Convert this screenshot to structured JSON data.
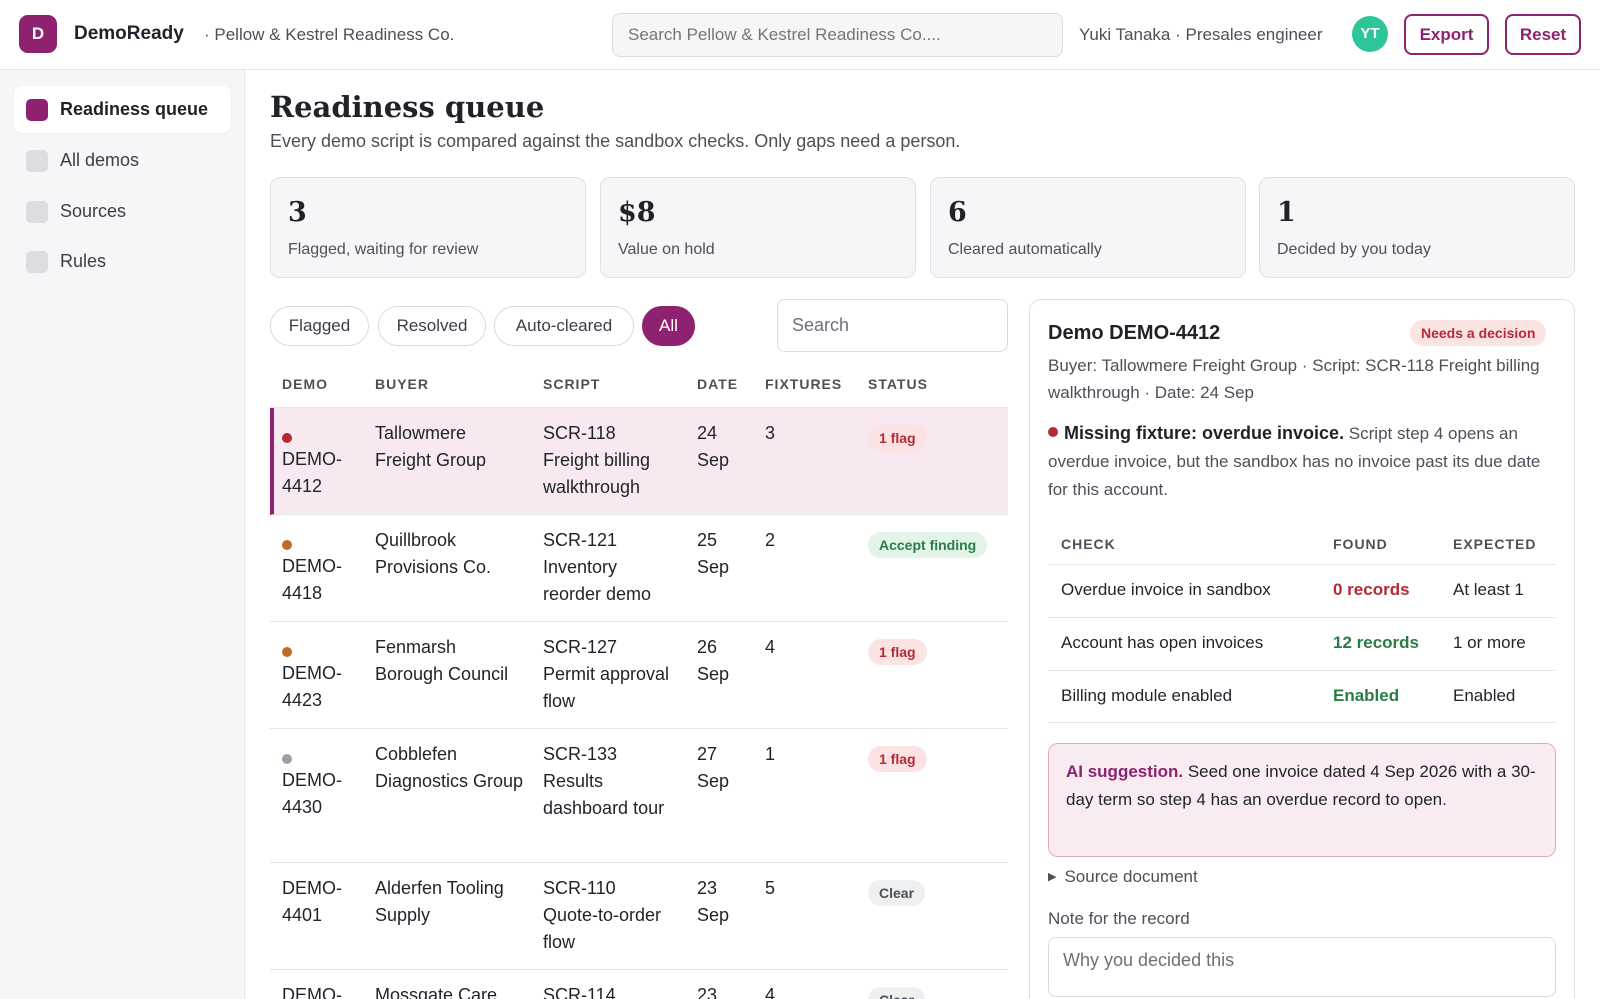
{
  "app": {
    "logo_letter": "D",
    "name": "DemoReady",
    "org": "· Pellow & Kestrel Readiness Co.",
    "search_placeholder": "Search Pellow & Kestrel Readiness Co....",
    "user": "Yuki Tanaka · Presales engineer",
    "avatar_initials": "YT",
    "export_label": "Export",
    "reset_label": "Reset",
    "accent_color": "#8e2270"
  },
  "sidebar": {
    "items": [
      {
        "label": "Readiness queue",
        "active": true
      },
      {
        "label": "All demos",
        "active": false
      },
      {
        "label": "Sources",
        "active": false
      },
      {
        "label": "Rules",
        "active": false
      }
    ]
  },
  "page": {
    "title": "Readiness queue",
    "subtitle": "Every demo script is compared against the sandbox checks. Only gaps need a person."
  },
  "stats": [
    {
      "value": "3",
      "label": "Flagged, waiting for review"
    },
    {
      "value": "$8",
      "label": "Value on hold"
    },
    {
      "value": "6",
      "label": "Cleared automatically"
    },
    {
      "value": "1",
      "label": "Decided by you today"
    }
  ],
  "filters": {
    "chips": [
      "Flagged",
      "Resolved",
      "Auto-cleared",
      "All"
    ],
    "active": "All",
    "search_placeholder": "Search"
  },
  "table": {
    "columns": [
      "DEMO",
      "BUYER",
      "SCRIPT",
      "DATE",
      "FIXTURES",
      "STATUS"
    ],
    "rows": [
      {
        "demo": "DEMO-4412",
        "buyer": "Tallowmere Freight Group",
        "script": "SCR-118 Freight billing walkthrough",
        "date": "24 Sep",
        "fixtures": "3",
        "status": "1 flag",
        "status_kind": "flag",
        "dot": "#b42b35",
        "selected": true
      },
      {
        "demo": "DEMO-4418",
        "buyer": "Quillbrook Provisions Co.",
        "script": "SCR-121 Inventory reorder demo",
        "date": "25 Sep",
        "fixtures": "2",
        "status": "Accept finding",
        "status_kind": "accept",
        "dot": "#c06a23",
        "selected": false
      },
      {
        "demo": "DEMO-4423",
        "buyer": "Fenmarsh Borough Council",
        "script": "SCR-127 Permit approval flow",
        "date": "26 Sep",
        "fixtures": "4",
        "status": "1 flag",
        "status_kind": "flag",
        "dot": "#c06a23",
        "selected": false
      },
      {
        "demo": "DEMO-4430",
        "buyer": "Cobblefen Diagnostics Group",
        "script": "SCR-133 Results dashboard tour",
        "date": "27 Sep",
        "fixtures": "1",
        "status": "1 flag",
        "status_kind": "flag",
        "dot": "#9aa0aa",
        "selected": false
      },
      {
        "demo": "DEMO-4401",
        "buyer": "Alderfen Tooling Supply",
        "script": "SCR-110 Quote-to-order flow",
        "date": "23 Sep",
        "fixtures": "5",
        "status": "Clear",
        "status_kind": "clear",
        "dot": "",
        "selected": false
      },
      {
        "demo": "DEMO-",
        "buyer": "Mossgate Care",
        "script": "SCR-114",
        "date": "23",
        "fixtures": "4",
        "status": "Clear",
        "status_kind": "clear",
        "dot": "",
        "selected": false
      }
    ]
  },
  "detail": {
    "title": "Demo DEMO-4412",
    "pill": "Needs a decision",
    "meta": "Buyer: Tallowmere Freight Group · Script: SCR-118 Freight billing walkthrough · Date: 24 Sep",
    "finding_title": "Missing fixture: overdue invoice.",
    "finding_text": " Script step 4 opens an overdue invoice, but the sandbox has no invoice past its due date for this account.",
    "checks_header": {
      "check": "CHECK",
      "found": "FOUND",
      "expected": "EXPECTED"
    },
    "checks": [
      {
        "check": "Overdue invoice in sandbox",
        "found": "0 records",
        "expected": "At least 1",
        "ok": false
      },
      {
        "check": "Account has open invoices",
        "found": "12 records",
        "expected": "1 or more",
        "ok": true
      },
      {
        "check": "Billing module enabled",
        "found": "Enabled",
        "expected": "Enabled",
        "ok": true
      }
    ],
    "ai_label": "AI suggestion.",
    "ai_text": " Seed one invoice dated 4 Sep 2026 with a 30-day term so step 4 has an overdue record to open.",
    "source_label": "Source document",
    "note_label": "Note for the record",
    "note_placeholder": "Why you decided this"
  }
}
